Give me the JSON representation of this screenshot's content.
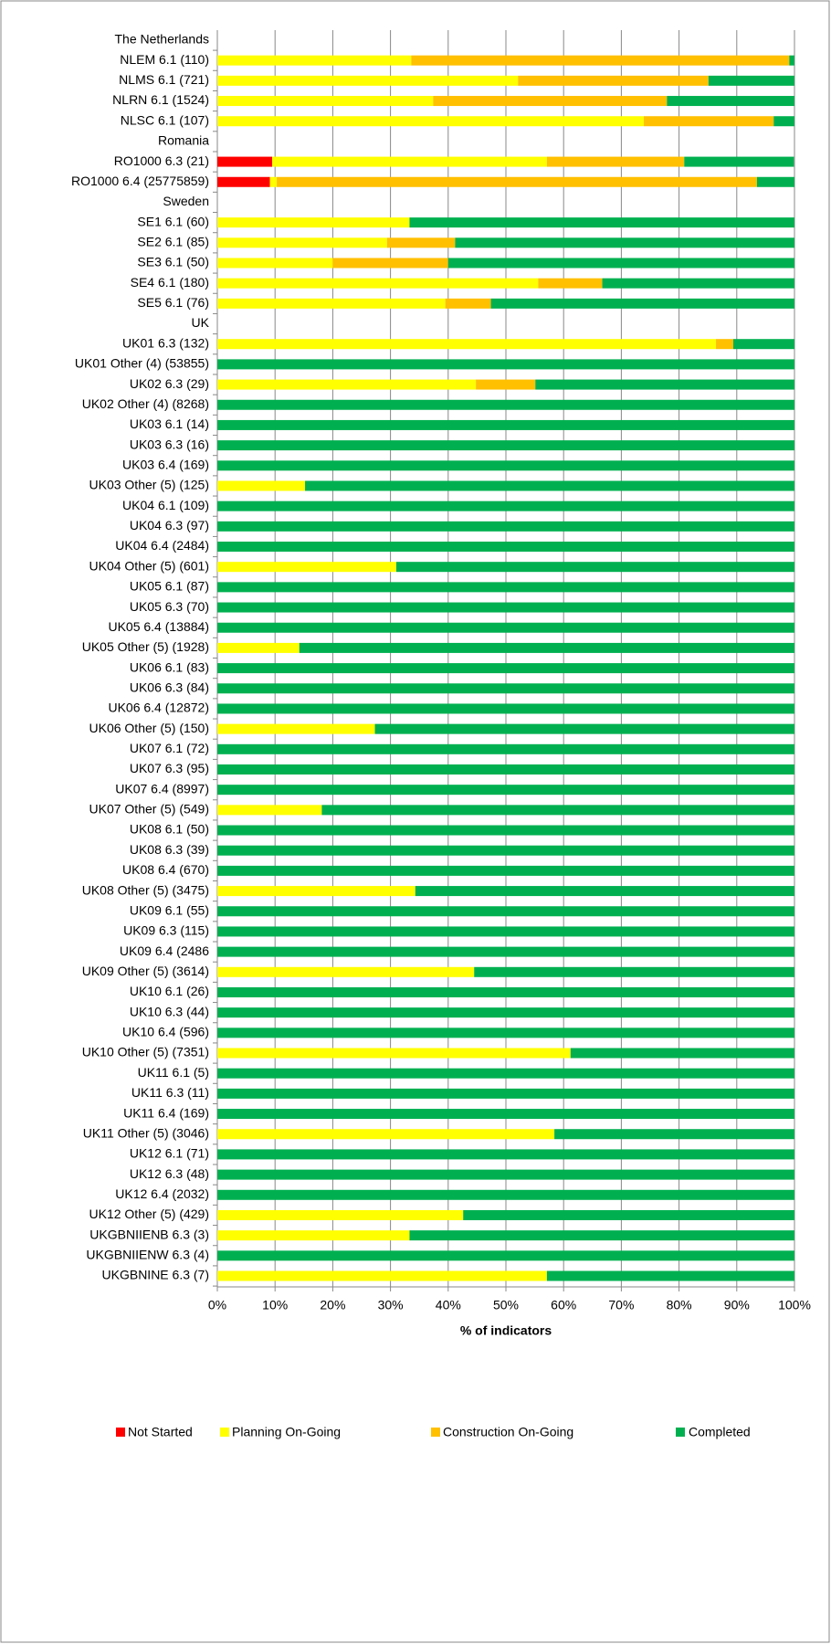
{
  "chart_data": {
    "type": "stacked-barh",
    "categories": [
      "The Netherlands",
      "NLEM 6.1 (110)",
      "NLMS 6.1 (721)",
      "NLRN 6.1 (1524)",
      "NLSC 6.1 (107)",
      "Romania",
      "RO1000 6.3 (21)",
      "RO1000 6.4 (25775859)",
      "Sweden",
      "SE1 6.1 (60)",
      "SE2 6.1 (85)",
      "SE3 6.1 (50)",
      "SE4 6.1 (180)",
      "SE5 6.1 (76)",
      "UK",
      "UK01 6.3 (132)",
      "UK01 Other (4) (53855)",
      "UK02 6.3 (29)",
      "UK02 Other (4) (8268)",
      "UK03 6.1 (14)",
      "UK03 6.3 (16)",
      "UK03 6.4 (169)",
      "UK03 Other (5) (125)",
      "UK04 6.1 (109)",
      "UK04 6.3 (97)",
      "UK04 6.4 (2484)",
      "UK04 Other (5) (601)",
      "UK05 6.1 (87)",
      "UK05 6.3 (70)",
      "UK05 6.4 (13884)",
      "UK05 Other (5) (1928)",
      "UK06 6.1 (83)",
      "UK06 6.3 (84)",
      "UK06 6.4 (12872)",
      "UK06 Other (5) (150)",
      "UK07 6.1 (72)",
      "UK07 6.3 (95)",
      "UK07 6.4 (8997)",
      "UK07 Other (5) (549)",
      "UK08 6.1 (50)",
      "UK08 6.3 (39)",
      "UK08 6.4 (670)",
      "UK08 Other (5) (3475)",
      "UK09 6.1 (55)",
      "UK09 6.3 (115)",
      "UK09 6.4 (2486",
      "UK09 Other (5) (3614)",
      "UK10 6.1 (26)",
      "UK10 6.3 (44)",
      "UK10 6.4 (596)",
      "UK10 Other (5) (7351)",
      "UK11 6.1 (5)",
      "UK11 6.3 (11)",
      "UK11 6.4 (169)",
      "UK11 Other (5) (3046)",
      "UK12 6.1 (71)",
      "UK12 6.3 (48)",
      "UK12 6.4 (2032)",
      "UK12 Other (5) (429)",
      "UKGBNIIENB 6.3 (3)",
      "UKGBNIIENW 6.3 (4)",
      "UKGBNINE 6.3 (7)"
    ],
    "series": [
      {
        "name": "Not Started",
        "color": "#ff0000",
        "values": [
          null,
          0,
          0,
          0,
          0,
          null,
          9.5,
          9.1,
          null,
          0,
          0,
          0,
          0,
          0,
          null,
          0,
          0,
          0,
          0,
          0,
          0,
          0,
          0,
          0,
          0,
          0,
          0,
          0,
          0,
          0,
          0,
          0,
          0,
          0,
          0,
          0,
          0,
          0,
          0,
          0,
          0,
          0,
          0,
          0,
          0,
          0,
          0,
          0,
          0,
          0,
          0,
          0,
          0,
          0,
          0,
          0,
          0,
          0,
          0,
          0,
          0,
          0
        ]
      },
      {
        "name": "Planning On-Going",
        "color": "#ffff00",
        "values": [
          null,
          33.6,
          52.1,
          37.4,
          73.9,
          null,
          47.6,
          1.2,
          null,
          33.3,
          29.4,
          20,
          55.6,
          39.5,
          null,
          86.4,
          0,
          44.8,
          0,
          0,
          0,
          0,
          15.2,
          0,
          0,
          0,
          31.0,
          0,
          0,
          0,
          14.2,
          0,
          0,
          0,
          27.3,
          0,
          0,
          0,
          18.1,
          0,
          0,
          0,
          34.3,
          0,
          0,
          0,
          44.5,
          0,
          0,
          0,
          61.2,
          0,
          0,
          0,
          58.4,
          0,
          0,
          0,
          42.6,
          33.3,
          0,
          57.1
        ]
      },
      {
        "name": "Construction On-Going",
        "color": "#ffc000",
        "values": [
          null,
          65.5,
          33,
          40.5,
          22.5,
          null,
          23.8,
          83.2,
          null,
          0,
          11.8,
          20,
          11.1,
          7.9,
          null,
          3.0,
          0,
          10.3,
          0,
          0,
          0,
          0,
          0,
          0,
          0,
          0,
          0,
          0,
          0,
          0,
          0,
          0,
          0,
          0,
          0,
          0,
          0,
          0,
          0,
          0,
          0,
          0,
          0,
          0,
          0,
          0,
          0,
          0,
          0,
          0,
          0,
          0,
          0,
          0,
          0,
          0,
          0,
          0,
          0,
          0,
          0,
          0
        ]
      },
      {
        "name": "Completed",
        "color": "#00b050",
        "values": [
          null,
          0.9,
          14.9,
          22.1,
          3.6,
          null,
          19.0,
          6.5,
          null,
          66.7,
          58.8,
          60,
          33.3,
          52.6,
          null,
          10.6,
          100,
          44.9,
          100,
          100,
          100,
          100,
          84.8,
          100,
          100,
          100,
          69.0,
          100,
          100,
          100,
          85.8,
          100,
          100,
          100,
          72.7,
          100,
          100,
          100,
          81.9,
          100,
          100,
          100,
          65.7,
          100,
          100,
          100,
          55.5,
          100,
          100,
          100,
          38.8,
          100,
          100,
          100,
          41.6,
          100,
          100,
          100,
          57.4,
          66.7,
          100,
          42.9
        ]
      }
    ],
    "x_label": "% of indicators",
    "xlim": [
      0,
      100
    ],
    "xticks": [
      {
        "value": 0,
        "label": "0%"
      },
      {
        "value": 10,
        "label": "10%"
      },
      {
        "value": 20,
        "label": "20%"
      },
      {
        "value": 30,
        "label": "30%"
      },
      {
        "value": 40,
        "label": "40%"
      },
      {
        "value": 50,
        "label": "50%"
      },
      {
        "value": 60,
        "label": "60%"
      },
      {
        "value": 70,
        "label": "70%"
      },
      {
        "value": 80,
        "label": "80%"
      },
      {
        "value": 90,
        "label": "90%"
      },
      {
        "value": 100,
        "label": "100%"
      }
    ],
    "grid": true,
    "legend": "bottom"
  }
}
